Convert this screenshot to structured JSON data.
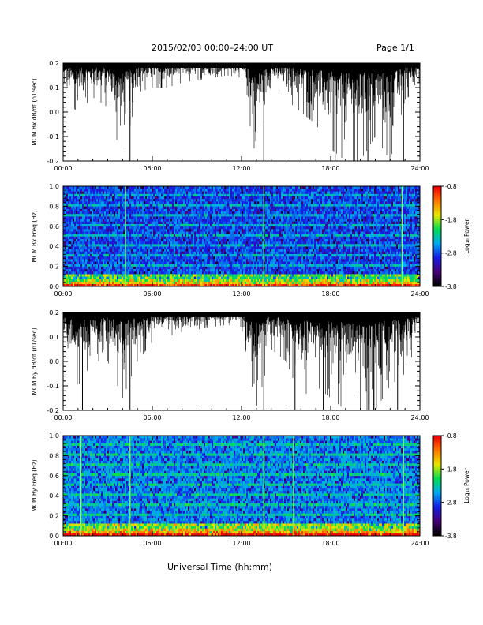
{
  "header": {
    "title": "2015/02/03  00:00–24:00 UT",
    "page": "Page 1/1"
  },
  "xaxis_title": "Universal Time (hh:mm)",
  "colorbar": {
    "label": "Log₁₀ Power",
    "ticks": [
      "-0.8",
      "-1.8",
      "-2.8",
      "-3.8"
    ],
    "range": [
      -3.8,
      -0.8
    ]
  },
  "chart_data": [
    {
      "type": "line",
      "ylabel": "MCM Bx dB/dt (nT/sec)",
      "xticks": [
        "00:00",
        "06:00",
        "12:00",
        "18:00",
        "24:00"
      ],
      "xlim": [
        0,
        24
      ],
      "ylim": [
        -0.2,
        0.2
      ],
      "yticks": [
        "-0.2",
        "-0.1",
        "0.0",
        "0.1",
        "0.2"
      ],
      "envelope_hours": [
        0,
        1,
        2,
        3,
        4,
        5,
        6,
        7,
        8,
        9,
        10,
        11,
        12,
        13,
        14,
        15,
        16,
        17,
        18,
        19,
        20,
        21,
        22,
        23,
        24
      ],
      "envelope_min": [
        0.05,
        0.0,
        0.06,
        0.02,
        -0.2,
        0.08,
        0.1,
        0.1,
        0.12,
        0.13,
        0.14,
        0.15,
        0.14,
        -0.2,
        0.1,
        0.05,
        0.0,
        -0.05,
        -0.15,
        -0.2,
        -0.2,
        -0.1,
        -0.2,
        0.05,
        0.1
      ],
      "envelope_max": [
        0.2,
        0.2,
        0.2,
        0.2,
        0.2,
        0.2,
        0.2,
        0.2,
        0.2,
        0.2,
        0.2,
        0.2,
        0.2,
        0.2,
        0.2,
        0.2,
        0.2,
        0.2,
        0.2,
        0.2,
        0.2,
        0.2,
        0.2,
        0.2,
        0.2
      ],
      "spike_hours": [
        4.5,
        13.5,
        18.3,
        19.6,
        20.5,
        22.9
      ]
    },
    {
      "type": "heatmap",
      "ylabel": "MCM Bx Freq (Hz)",
      "colorbar_label": "Log₁₀ Power",
      "xticks": [
        "00:00",
        "06:00",
        "12:00",
        "18:00",
        "24:00"
      ],
      "xlim": [
        0,
        24
      ],
      "ylim": [
        0.0,
        1.0
      ],
      "yticks": [
        "0.0",
        "0.2",
        "0.4",
        "0.6",
        "0.8",
        "1.0"
      ],
      "value_range": [
        -3.8,
        -0.8
      ],
      "bright_hours": [
        4.2,
        13.5,
        22.8
      ]
    },
    {
      "type": "line",
      "ylabel": "MCM By dB/dt (nT/sec)",
      "xticks": [
        "00:00",
        "06:00",
        "12:00",
        "18:00",
        "24:00"
      ],
      "xlim": [
        0,
        24
      ],
      "ylim": [
        -0.2,
        0.2
      ],
      "yticks": [
        "-0.2",
        "-0.1",
        "0.0",
        "0.1",
        "0.2"
      ],
      "envelope_hours": [
        0,
        1,
        2,
        3,
        4,
        5,
        6,
        7,
        8,
        9,
        10,
        11,
        12,
        13,
        14,
        15,
        16,
        17,
        18,
        19,
        20,
        21,
        22,
        23,
        24
      ],
      "envelope_min": [
        0.05,
        -0.1,
        0.0,
        0.0,
        -0.15,
        0.0,
        0.08,
        0.1,
        0.12,
        0.13,
        0.14,
        0.15,
        0.14,
        -0.2,
        0.05,
        0.0,
        -0.15,
        -0.1,
        -0.15,
        -0.2,
        -0.2,
        -0.2,
        -0.1,
        -0.05,
        0.1
      ],
      "envelope_max": [
        0.2,
        0.2,
        0.2,
        0.2,
        0.2,
        0.2,
        0.2,
        0.2,
        0.2,
        0.2,
        0.2,
        0.2,
        0.2,
        0.2,
        0.2,
        0.2,
        0.2,
        0.2,
        0.2,
        0.2,
        0.2,
        0.2,
        0.2,
        0.2,
        0.2
      ],
      "spike_hours": [
        1.3,
        4.5,
        13.5,
        15.6,
        17.5,
        20.9,
        22.5
      ]
    },
    {
      "type": "heatmap",
      "ylabel": "MCM By Freq (Hz)",
      "colorbar_label": "Log₁₀ Power",
      "xticks": [
        "00:00",
        "06:00",
        "12:00",
        "18:00",
        "24:00"
      ],
      "xlim": [
        0,
        24
      ],
      "ylim": [
        0.0,
        1.0
      ],
      "yticks": [
        "0.0",
        "0.2",
        "0.4",
        "0.6",
        "0.8",
        "1.0"
      ],
      "value_range": [
        -3.8,
        -0.8
      ],
      "bright_hours": [
        1.2,
        4.5,
        13.5,
        15.5,
        22.9
      ]
    }
  ]
}
